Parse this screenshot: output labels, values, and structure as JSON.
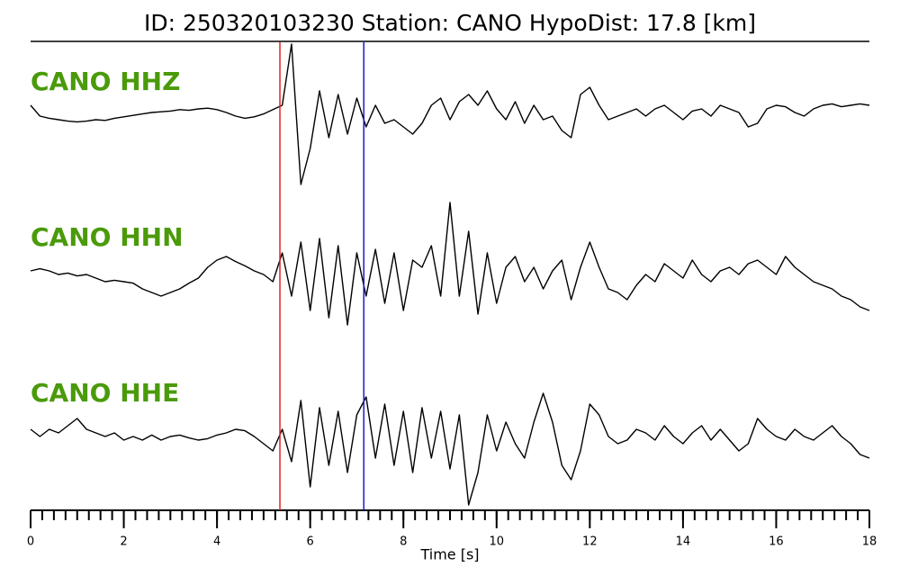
{
  "chart_data": {
    "type": "line",
    "title": "ID: 250320103230   Station: CANO   HypoDist:    17.8 [km]",
    "xlabel": "Time [s]",
    "xlim": [
      0,
      18
    ],
    "xticks": [
      0,
      2,
      4,
      6,
      8,
      10,
      12,
      14,
      16,
      18
    ],
    "xminorticks": [
      0,
      0.25,
      0.5,
      0.75,
      1,
      1.25,
      1.5,
      1.75,
      2,
      2.25,
      2.5,
      2.75,
      3,
      3.25,
      3.5,
      3.75,
      4,
      4.25,
      4.5,
      4.75,
      5,
      5.25,
      5.5,
      5.75,
      6,
      6.25,
      6.5,
      6.75,
      7,
      7.25,
      7.5,
      7.75,
      8,
      8.25,
      8.5,
      8.75,
      9,
      9.25,
      9.5,
      9.75,
      10,
      10.25,
      10.5,
      10.75,
      11,
      11.25,
      11.5,
      11.75,
      12,
      12.25,
      12.5,
      12.75,
      13,
      13.25,
      13.5,
      13.75,
      14,
      14.25,
      14.5,
      14.75,
      15,
      15.25,
      15.5,
      15.75,
      16,
      16.25,
      16.5,
      16.75,
      17,
      17.25,
      17.5,
      17.75,
      18
    ],
    "ylim": [
      -1,
      1
    ],
    "label_color": "#4a9a0a",
    "markers": [
      {
        "x": 5.35,
        "color": "#e32222"
      },
      {
        "x": 7.15,
        "color": "#1a1ad4"
      }
    ],
    "x": [
      0,
      0.2,
      0.4,
      0.6,
      0.8,
      1,
      1.2,
      1.4,
      1.6,
      1.8,
      2,
      2.2,
      2.4,
      2.6,
      2.8,
      3,
      3.2,
      3.4,
      3.6,
      3.8,
      4,
      4.2,
      4.4,
      4.6,
      4.8,
      5,
      5.2,
      5.4,
      5.6,
      5.8,
      6,
      6.2,
      6.4,
      6.6,
      6.8,
      7,
      7.2,
      7.4,
      7.6,
      7.8,
      8,
      8.2,
      8.4,
      8.6,
      8.8,
      9,
      9.2,
      9.4,
      9.6,
      9.8,
      10,
      10.2,
      10.4,
      10.6,
      10.8,
      11,
      11.2,
      11.4,
      11.6,
      11.8,
      12,
      12.2,
      12.4,
      12.6,
      12.8,
      13,
      13.2,
      13.4,
      13.6,
      13.8,
      14,
      14.2,
      14.4,
      14.6,
      14.8,
      15,
      15.2,
      15.4,
      15.6,
      15.8,
      16,
      16.2,
      16.4,
      16.6,
      16.8,
      17,
      17.2,
      17.4,
      17.6,
      17.8,
      18
    ],
    "series": [
      {
        "name": "CANO HHZ",
        "color": "#000000",
        "values": [
          0.1,
          -0.05,
          -0.08,
          -0.1,
          -0.12,
          -0.13,
          -0.12,
          -0.1,
          -0.11,
          -0.08,
          -0.06,
          -0.04,
          -0.02,
          0,
          0.01,
          0.02,
          0.04,
          0.03,
          0.05,
          0.06,
          0.04,
          0,
          -0.05,
          -0.08,
          -0.06,
          -0.02,
          0.04,
          0.1,
          0.95,
          -1,
          -0.5,
          0.3,
          -0.35,
          0.25,
          -0.3,
          0.2,
          -0.2,
          0.1,
          -0.15,
          -0.1,
          -0.2,
          -0.3,
          -0.15,
          0.1,
          0.2,
          -0.1,
          0.15,
          0.25,
          0.1,
          0.3,
          0.05,
          -0.1,
          0.15,
          -0.15,
          0.1,
          -0.1,
          -0.05,
          -0.25,
          -0.35,
          0.25,
          0.35,
          0.1,
          -0.1,
          -0.05,
          0,
          0.05,
          -0.05,
          0.05,
          0.1,
          0,
          -0.1,
          0.02,
          0.05,
          -0.05,
          0.1,
          0.05,
          0,
          -0.2,
          -0.15,
          0.05,
          0.1,
          0.08,
          0,
          -0.05,
          0.05,
          0.1,
          0.12,
          0.08,
          0.1,
          0.12,
          0.1
        ]
      },
      {
        "name": "CANO HHN",
        "color": "#000000",
        "values": [
          0.05,
          0.08,
          0.05,
          0,
          0.02,
          -0.02,
          0,
          -0.05,
          -0.1,
          -0.08,
          -0.1,
          -0.12,
          -0.2,
          -0.25,
          -0.3,
          -0.25,
          -0.2,
          -0.12,
          -0.05,
          0.1,
          0.2,
          0.25,
          0.18,
          0.12,
          0.05,
          0,
          -0.1,
          0.3,
          -0.3,
          0.45,
          -0.5,
          0.5,
          -0.6,
          0.4,
          -0.7,
          0.3,
          -0.3,
          0.35,
          -0.4,
          0.3,
          -0.5,
          0.2,
          0.1,
          0.4,
          -0.3,
          1,
          -0.3,
          0.6,
          -0.55,
          0.3,
          -0.4,
          0.1,
          0.25,
          -0.1,
          0.1,
          -0.2,
          0.05,
          0.2,
          -0.35,
          0.1,
          0.45,
          0.1,
          -0.2,
          -0.25,
          -0.35,
          -0.15,
          0,
          -0.1,
          0.15,
          0.05,
          -0.05,
          0.2,
          0,
          -0.1,
          0.05,
          0.1,
          0,
          0.15,
          0.2,
          0.1,
          0,
          0.25,
          0.1,
          0,
          -0.1,
          -0.15,
          -0.2,
          -0.3,
          -0.35,
          -0.45,
          -0.5
        ]
      },
      {
        "name": "CANO HHE",
        "color": "#000000",
        "values": [
          0.1,
          0,
          0.1,
          0.05,
          0.15,
          0.25,
          0.1,
          0.05,
          0,
          0.05,
          -0.05,
          0,
          -0.05,
          0.02,
          -0.05,
          0,
          0.02,
          -0.02,
          -0.05,
          -0.03,
          0.02,
          0.05,
          0.1,
          0.08,
          0,
          -0.1,
          -0.2,
          0.1,
          -0.35,
          0.5,
          -0.7,
          0.4,
          -0.4,
          0.35,
          -0.5,
          0.3,
          0.55,
          -0.3,
          0.45,
          -0.4,
          0.35,
          -0.5,
          0.4,
          -0.3,
          0.35,
          -0.45,
          0.3,
          -0.95,
          -0.5,
          0.3,
          -0.2,
          0.2,
          -0.1,
          -0.3,
          0.2,
          0.6,
          0.2,
          -0.4,
          -0.6,
          -0.2,
          0.45,
          0.3,
          0,
          -0.1,
          -0.05,
          0.1,
          0.05,
          -0.05,
          0.15,
          0,
          -0.1,
          0.05,
          0.15,
          -0.05,
          0.1,
          -0.05,
          -0.2,
          -0.1,
          0.25,
          0.1,
          0,
          -0.05,
          0.1,
          0,
          -0.05,
          0.05,
          0.15,
          0,
          -0.1,
          -0.25,
          -0.3
        ]
      }
    ]
  }
}
